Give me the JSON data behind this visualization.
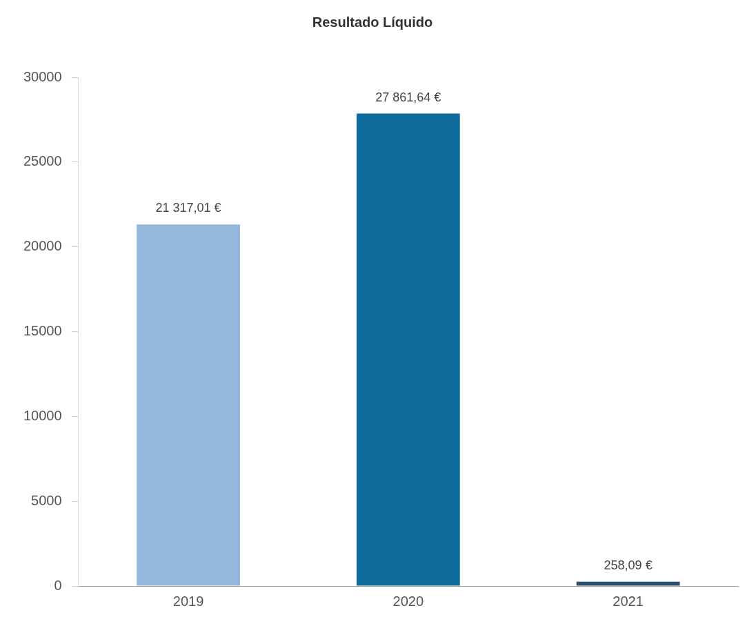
{
  "chart_data": {
    "type": "bar",
    "title": "Resultado Líquido",
    "categories": [
      "2019",
      "2020",
      "2021"
    ],
    "values": [
      21317.01,
      27861.64,
      258.09
    ],
    "colors": [
      "#93b8dc",
      "#0f6b9b",
      "#2b4d6e"
    ],
    "value_labels": [
      "21 317,01 €",
      "27 861,64 €",
      "258,09 €"
    ],
    "ylim": [
      0,
      30000
    ],
    "yticks": [
      0,
      5000,
      10000,
      15000,
      20000,
      25000,
      30000
    ],
    "grid": false,
    "legend": false
  }
}
